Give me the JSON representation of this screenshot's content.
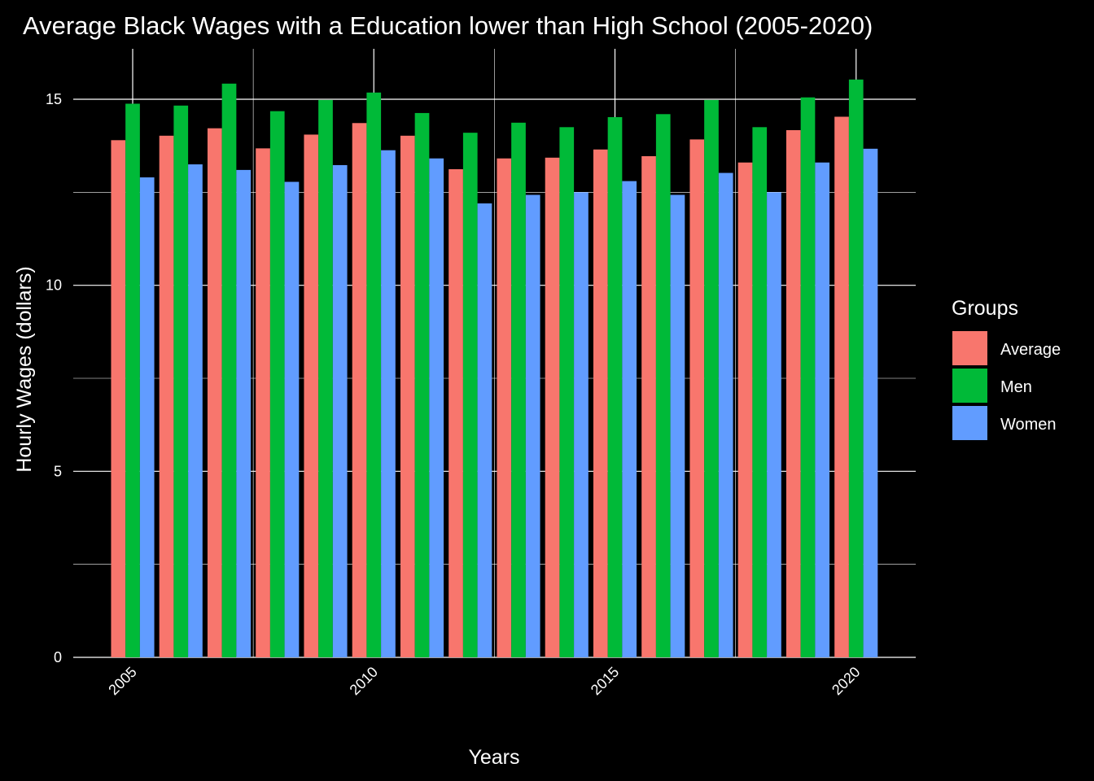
{
  "chart_data": {
    "type": "bar",
    "title": "Average Black Wages with a Education lower than High School (2005-2020)",
    "xlabel": "Years",
    "ylabel": "Hourly Wages (dollars)",
    "ylim": [
      0,
      15.5
    ],
    "yticks": [
      0,
      5,
      10,
      15
    ],
    "xticks": [
      2005,
      2010,
      2015,
      2020
    ],
    "grid": true,
    "legend_title": "Groups",
    "legend_position": "right",
    "categories": [
      2005,
      2006,
      2007,
      2008,
      2009,
      2010,
      2011,
      2012,
      2013,
      2014,
      2015,
      2016,
      2017,
      2018,
      2019,
      2020
    ],
    "series": [
      {
        "name": "Average",
        "color": "#F8766D",
        "values": [
          13.9,
          14.02,
          14.22,
          13.68,
          14.05,
          14.36,
          14.02,
          13.12,
          13.41,
          13.43,
          13.65,
          13.47,
          13.92,
          13.3,
          14.17,
          14.53
        ]
      },
      {
        "name": "Men",
        "color": "#00BA38",
        "values": [
          14.88,
          14.83,
          15.42,
          14.68,
          14.98,
          15.18,
          14.63,
          14.1,
          14.37,
          14.25,
          14.52,
          14.6,
          14.98,
          14.25,
          15.05,
          15.53
        ]
      },
      {
        "name": "Women",
        "color": "#619CFF",
        "values": [
          12.9,
          13.25,
          13.1,
          12.78,
          13.23,
          13.63,
          13.41,
          12.2,
          12.43,
          12.5,
          12.8,
          12.43,
          13.02,
          12.5,
          13.3,
          13.67
        ]
      }
    ]
  }
}
